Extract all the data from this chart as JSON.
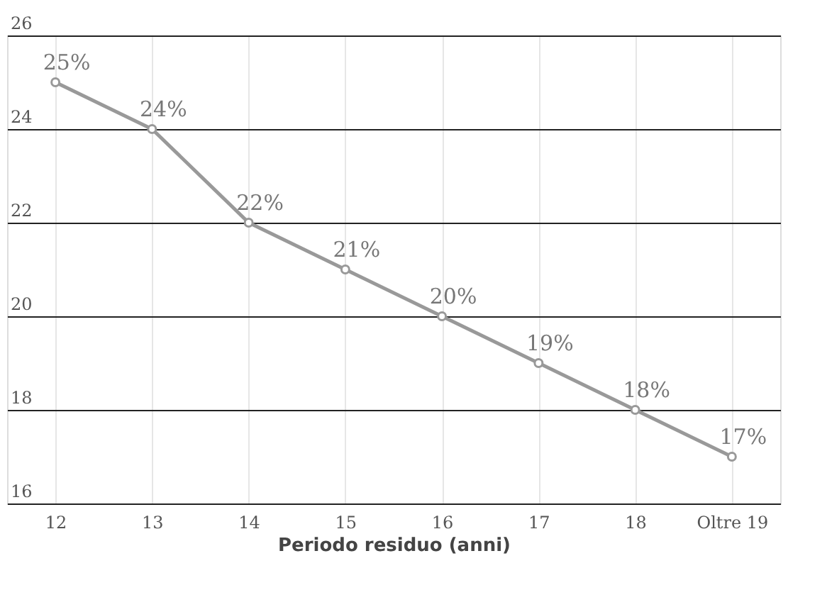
{
  "chart_data": {
    "type": "line",
    "xlabel": "Periodo residuo (anni)",
    "categories": [
      "12",
      "13",
      "14",
      "15",
      "16",
      "17",
      "18",
      "Oltre 19"
    ],
    "series": [
      {
        "color": "#999999",
        "values": [
          25,
          24,
          22,
          21,
          20,
          19,
          18,
          17
        ],
        "value_labels": [
          "25%",
          "24%",
          "22%",
          "21%",
          "20%",
          "19%",
          "18%",
          "17%"
        ]
      }
    ],
    "ylim": [
      16,
      26
    ],
    "yticks": [
      16,
      18,
      20,
      22,
      24,
      26
    ],
    "grid": true,
    "marker": "circle",
    "line_style": "solid"
  }
}
